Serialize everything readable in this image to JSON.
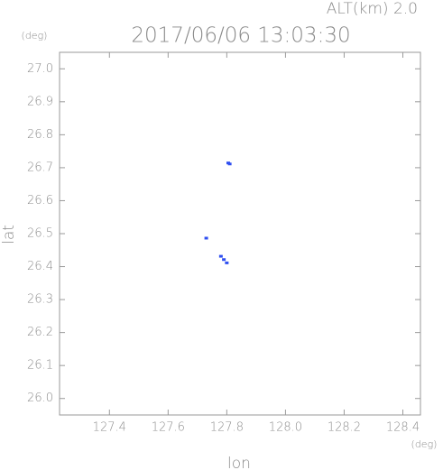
{
  "chart_data": {
    "type": "scatter",
    "title": "2017/06/06 13:03:30",
    "subtitle": "ALT(km) 2.0",
    "x_label": "lon",
    "y_label": "lat",
    "x_unit": "(deg)",
    "y_unit": "(deg)",
    "xlim": [
      127.23,
      128.46
    ],
    "ylim": [
      25.95,
      27.05
    ],
    "xticks": [
      127.4,
      127.6,
      127.8,
      {
        "value": 128.0,
        "label": "128.0"
      },
      128.2,
      128.4
    ],
    "yticks": [
      {
        "value": 26.0,
        "label": "26.0"
      },
      26.1,
      26.2,
      26.3,
      26.4,
      26.5,
      26.6,
      26.7,
      26.8,
      26.9,
      {
        "value": 27.0,
        "label": "27.0"
      }
    ],
    "series": [
      {
        "color": "#2f4ff0",
        "x": [
          127.81,
          127.805,
          127.73,
          127.78,
          127.79,
          127.8
        ],
        "values": [
          26.71,
          26.713,
          26.485,
          26.43,
          26.42,
          26.41
        ]
      }
    ]
  }
}
